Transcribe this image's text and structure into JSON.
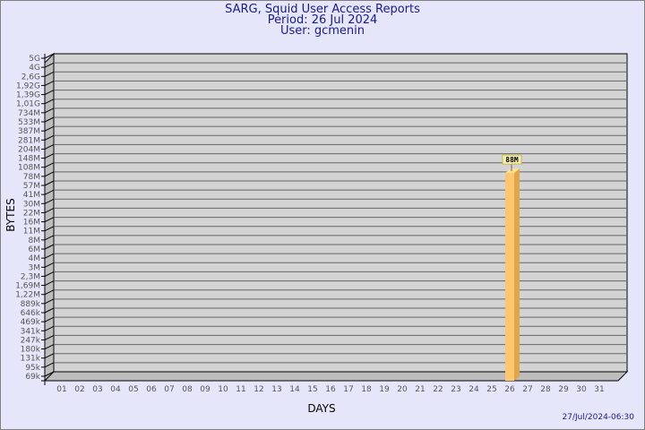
{
  "header": {
    "title": "SARG, Squid User Access Reports",
    "period": "Period: 26 Jul 2024",
    "user": "User: gcmenin"
  },
  "footer": {
    "timestamp": "27/Jul/2024-06:30"
  },
  "chart_data": {
    "type": "bar",
    "xlabel": "DAYS",
    "ylabel": "BYTES",
    "y_scale": "log",
    "grid": true,
    "categories": [
      "01",
      "02",
      "03",
      "04",
      "05",
      "06",
      "07",
      "08",
      "09",
      "10",
      "11",
      "12",
      "13",
      "14",
      "15",
      "16",
      "17",
      "18",
      "19",
      "20",
      "21",
      "22",
      "23",
      "24",
      "25",
      "26",
      "27",
      "28",
      "29",
      "30",
      "31"
    ],
    "values": [
      null,
      null,
      null,
      null,
      null,
      null,
      null,
      null,
      null,
      null,
      null,
      null,
      null,
      null,
      null,
      null,
      null,
      null,
      null,
      null,
      null,
      null,
      null,
      null,
      null,
      88000000,
      null,
      null,
      null,
      null,
      null
    ],
    "data_labels": {
      "26": "88M"
    },
    "y_tick_labels": [
      "5G",
      "4G",
      "2,6G",
      "1,92G",
      "1,39G",
      "1,01G",
      "734M",
      "533M",
      "387M",
      "281M",
      "204M",
      "148M",
      "108M",
      "78M",
      "57M",
      "41M",
      "30M",
      "22M",
      "16M",
      "11M",
      "8M",
      "6M",
      "4M",
      "3M",
      "2,3M",
      "1,69M",
      "1,22M",
      "889k",
      "646k",
      "469k",
      "341k",
      "247k",
      "180k",
      "131k",
      "95k",
      "69k"
    ],
    "ylim": [
      69000,
      5000000000
    ],
    "colors": {
      "bar_front": "#ffc66e",
      "bar_side": "#dfa54a",
      "bar_top": "#ffe08f",
      "plot_bg": "#d3d3d3",
      "page_bg": "#e6e6fa",
      "title": "#1a1a8c"
    }
  }
}
